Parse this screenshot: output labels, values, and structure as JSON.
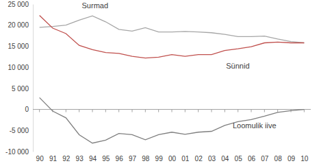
{
  "chart_data": {
    "type": "line",
    "categories": [
      "90",
      "91",
      "92",
      "93",
      "94",
      "95",
      "96",
      "97",
      "98",
      "99",
      "00",
      "01",
      "02",
      "03",
      "04",
      "05",
      "06",
      "07",
      "08",
      "09",
      "10"
    ],
    "series": [
      {
        "name": "Surmad",
        "color": "#a6a6a6",
        "values": [
          19500,
          19700,
          20000,
          21200,
          22200,
          20800,
          19000,
          18600,
          19400,
          18400,
          18400,
          18500,
          18400,
          18200,
          17800,
          17300,
          17300,
          17400,
          16700,
          16100,
          15800
        ]
      },
      {
        "name": "Sünnid",
        "color": "#c0504d",
        "values": [
          22300,
          19300,
          18000,
          15200,
          14200,
          13500,
          13300,
          12600,
          12200,
          12400,
          13000,
          12600,
          13000,
          13000,
          14000,
          14400,
          14900,
          15800,
          16000,
          15800,
          15800
        ]
      },
      {
        "name": "Loomulik iive",
        "color": "#7f7f7f",
        "values": [
          2800,
          -400,
          -2000,
          -6000,
          -8000,
          -7300,
          -5700,
          -6000,
          -7200,
          -6000,
          -5400,
          -5900,
          -5400,
          -5200,
          -3800,
          -2900,
          -2400,
          -1600,
          -700,
          -300,
          0
        ]
      }
    ],
    "ylim": [
      -10000,
      25000
    ],
    "yticks": [
      {
        "value": -10000,
        "label": "-10 000"
      },
      {
        "value": -5000,
        "label": "-5 000"
      },
      0,
      {
        "value": 5000,
        "label": "5 000"
      },
      {
        "value": 10000,
        "label": "10 000"
      },
      {
        "value": 15000,
        "label": "15 000"
      },
      {
        "value": 20000,
        "label": "20 000"
      },
      {
        "value": 25000,
        "label": "25 000"
      }
    ],
    "grid": false
  }
}
